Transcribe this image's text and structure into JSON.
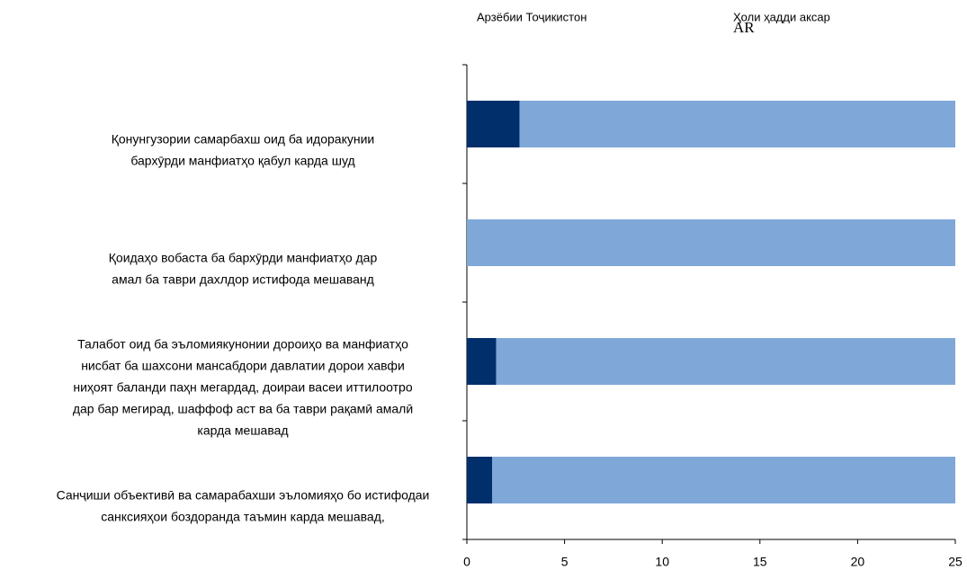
{
  "chart_data": {
    "type": "stacked_barh",
    "categories": [
      [
        "Қонунгузории самарбахш оид ба идоракунии",
        "бархӯрди манфиатҳо қабул карда шуд"
      ],
      [
        "Қоидаҳо вобаста ба бархӯрди манфиатҳо дар",
        "амал ба таври дахлдор истифода мешаванд"
      ],
      [
        "Талабот оид ба эъломиякунонии дороиҳо ва манфиатҳо",
        "нисбат ба шахсони мансабдори давлатии дорои хавфи",
        "ниҳоят баланди паҳн мегардад, доираи васеи иттилоотро",
        "дар бар мегирад, шаффоф аст ва ба таври рақамӣ амалӣ",
        "карда мешавад"
      ],
      [
        "Санҷиши объективӣ ва самарабахши эъломияҳо бо истифодаи",
        "санксияҳои боздоранда таъмин карда мешавад,"
      ]
    ],
    "series": [
      {
        "name": "Арзёбии Тоҷикистон",
        "color": "#002f6c",
        "values": [
          2.7,
          0,
          1.5,
          1.3
        ]
      },
      {
        "name": "Ҳоли ҳадди аксар",
        "color": "#7fa8d9",
        "values": [
          22.3,
          25,
          23.5,
          23.7
        ]
      }
    ],
    "annotation": "AR",
    "xlim": [
      0,
      25
    ],
    "xticks": [
      0,
      5,
      10,
      15,
      20,
      25
    ]
  }
}
